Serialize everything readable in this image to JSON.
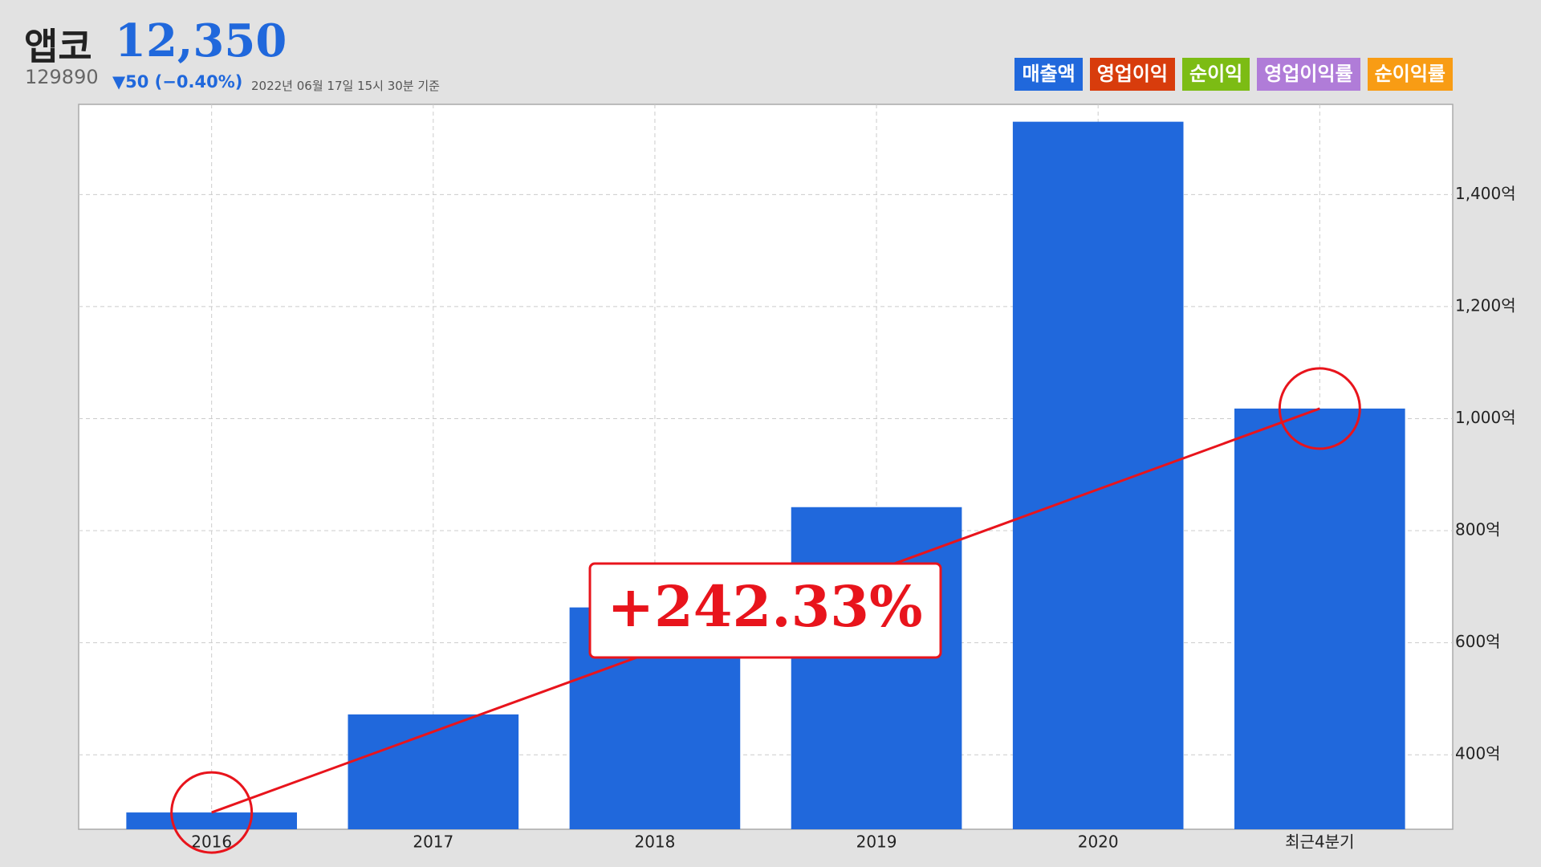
{
  "header": {
    "name": "앱코",
    "price": "12,350",
    "code": "129890",
    "change": "▼50 (−0.40%)",
    "timestamp": "2022년 06월 17일 15시 30분 기준"
  },
  "chart_data": {
    "type": "bar",
    "categories": [
      "2016",
      "2017",
      "2018",
      "2019",
      "2020",
      "최근4분기"
    ],
    "series": [
      {
        "name": "매출액",
        "color": "#2068dc",
        "values": [
          297,
          472,
          663,
          842,
          1530,
          1018
        ]
      },
      {
        "name": "영업이익",
        "color": "#d83c0c",
        "values": [
          null,
          null,
          null,
          null,
          null,
          null
        ]
      },
      {
        "name": "순이익",
        "color": "#7cbc14",
        "values": [
          null,
          null,
          null,
          null,
          null,
          null
        ]
      },
      {
        "name": "영업이익률",
        "color": "#b07cd8",
        "values": [
          null,
          null,
          null,
          null,
          null,
          null
        ]
      },
      {
        "name": "순이익률",
        "color": "#f89c14",
        "values": [
          null,
          null,
          null,
          null,
          null,
          null
        ]
      }
    ],
    "ylim": [
      267,
      1561
    ],
    "yticks": [
      {
        "value": 400,
        "label": "400억"
      },
      {
        "value": 600,
        "label": "600억"
      },
      {
        "value": 800,
        "label": "800억"
      },
      {
        "value": 1000,
        "label": "1,000억"
      },
      {
        "value": 1200,
        "label": "1,200억"
      },
      {
        "value": 1400,
        "label": "1,400억"
      }
    ],
    "grid": true,
    "annotation": "+242.33%"
  }
}
